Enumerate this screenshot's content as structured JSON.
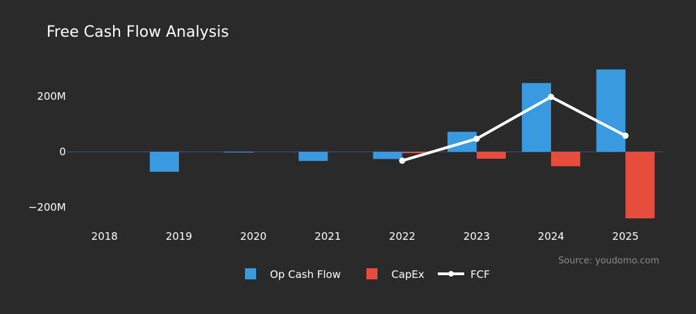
{
  "chart_data": {
    "type": "bar",
    "title": "Free Cash Flow Analysis",
    "categories": [
      "2018",
      "2019",
      "2020",
      "2021",
      "2022",
      "2023",
      "2024",
      "2025"
    ],
    "series": [
      {
        "name": "Op Cash Flow",
        "kind": "bar",
        "color": "#3a9ae0",
        "values": [
          0,
          -72,
          -2,
          -33,
          -26,
          72,
          248,
          297
        ]
      },
      {
        "name": "CapEx",
        "kind": "bar",
        "color": "#e74c3c",
        "values": [
          0,
          0,
          0,
          0,
          -5,
          -25,
          -52,
          -240
        ]
      },
      {
        "name": "FCF",
        "kind": "line",
        "color": "#ffffff",
        "values": [
          null,
          null,
          null,
          null,
          -32,
          47,
          198,
          58
        ]
      }
    ],
    "y_ticks": [
      {
        "value": 200,
        "label": "200M"
      },
      {
        "value": 0,
        "label": "0"
      },
      {
        "value": -200,
        "label": "−200M"
      }
    ],
    "ylim": [
      -250,
      320
    ],
    "source": "Source: youdomo.com",
    "legend_position": "bottom-center"
  }
}
